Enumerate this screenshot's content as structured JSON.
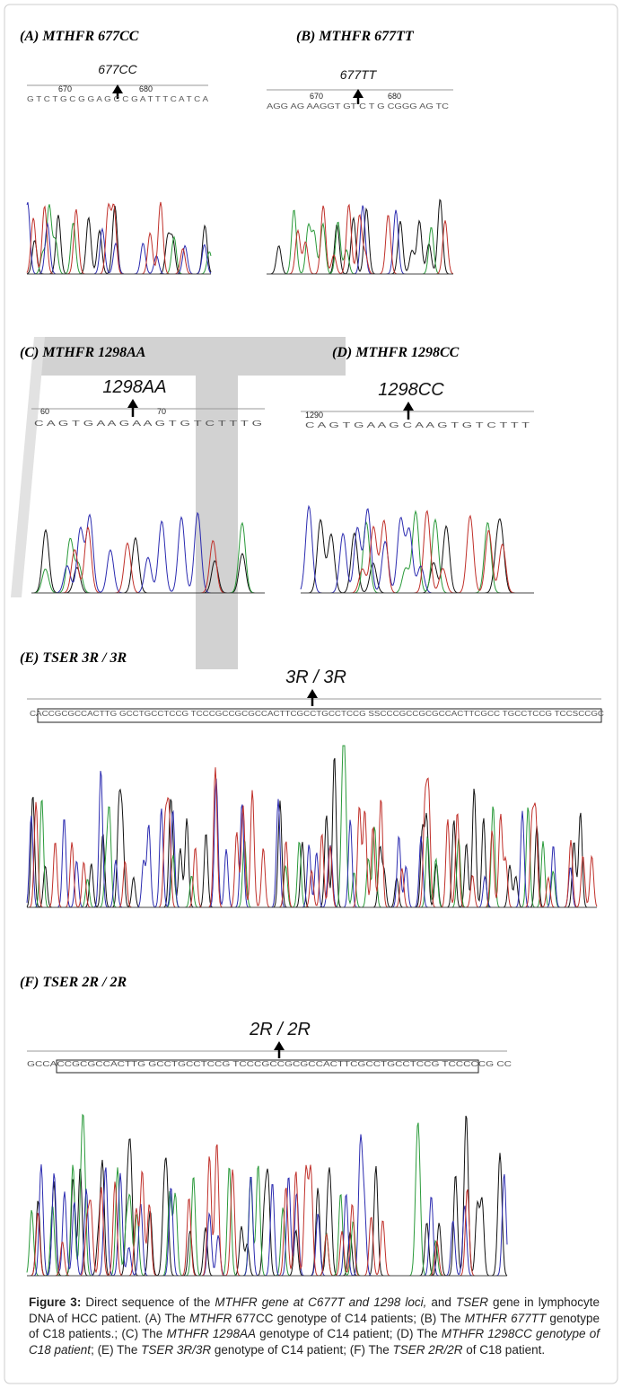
{
  "panels": [
    {
      "title": "(A) MTHFR 677CC",
      "genotype": "677CC",
      "positions": [
        "670",
        "680"
      ],
      "sequence": "G T C T G C G G A G C C G A T T T C A T C A"
    },
    {
      "title": "(B) MTHFR 677TT",
      "genotype": "677TT",
      "positions": [
        "670",
        "680"
      ],
      "sequence": "AGG AG AAGGT GT C T G CGGG AG TC"
    },
    {
      "title": "(C) MTHFR 1298AA",
      "genotype": "1298AA",
      "positions": [
        "60",
        "70"
      ],
      "sequence": "C A G T G A A G A A G T G T C T T T G"
    },
    {
      "title": "(D) MTHFR 1298CC",
      "genotype": "1298CC",
      "positions": [
        "1290"
      ],
      "sequence": "C A G T G A A G C A A G T G T C T T T"
    },
    {
      "title": "(E) TSER 3R / 3R",
      "genotype": "3R / 3R",
      "sequence": "CACCGCGCCACTTG GCCTGCCTCCG TCCCGCCGCGCCACTTCGCCTGCCTCCG SSCCCGCCGCGCCACTTCGCC TGCCTCCG TCCSCCGC"
    },
    {
      "title": "(F) TSER 2R / 2R",
      "genotype": "2R / 2R",
      "sequence": "GCCACCGCGCCACTTG GCCTGCCTCCG TCCCGCCGCGCCACTTCGCCTGCCTCCG TCCCCCG CC"
    }
  ],
  "caption": {
    "label": "Figure 3:",
    "parts": [
      " Direct sequence of the ",
      "MTHFR gene at C677T and 1298 loci,",
      " and ",
      "TSER",
      " gene in lymphocyte DNA of HCC patient. (A) The ",
      "MTHFR",
      " 677CC genotype of C14 patients; (B) The ",
      "MTHFR 677TT",
      " genotype of C18 patients.; (C) The ",
      "MTHFR 1298AA",
      " genotype of C14 patient; (D) The ",
      "MTHFR 1298CC genotype of C18 patient",
      "; (E) The ",
      "TSER 3R/3R",
      " genotype of C14 patient; (F) The ",
      "TSER 2R/2R",
      " of C18 patient."
    ]
  }
}
